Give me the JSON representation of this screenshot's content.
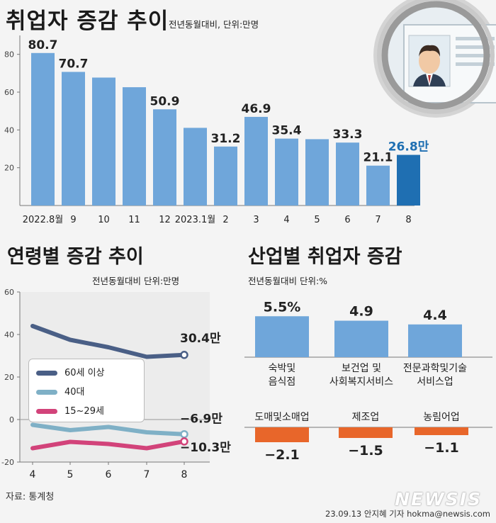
{
  "header": {
    "title": "취업자 증감 추이",
    "subtitle": "전년동월대비, 단위:만명"
  },
  "colors": {
    "bar": "#6fa6da",
    "bar_highlight": "#1f6fb2",
    "highlight_text": "#1f6fb2",
    "negative_bar": "#e8662a",
    "line_60plus": "#4a5f86",
    "line_40s": "#7fb0c6",
    "line_15_29": "#d2437a"
  },
  "age_section": {
    "title": "연령별 증감 추이",
    "subtitle": "전년동월대비 단위:만명"
  },
  "industry_section": {
    "title": "산업별 취업자 증감",
    "subtitle": "전년동월대비 단위:%"
  },
  "footer": {
    "source": "자료: 통계청",
    "credit": "23.09.13 안지혜 기자 hokma@newsis.com",
    "watermark": "NEWSIS"
  },
  "chart_data": [
    {
      "type": "bar",
      "title": "취업자 증감 추이",
      "categories": [
        "2022.8월",
        "9",
        "10",
        "11",
        "12",
        "2023.1월",
        "2",
        "3",
        "4",
        "5",
        "6",
        "7",
        "8"
      ],
      "values": [
        80.7,
        70.7,
        67.7,
        62.6,
        50.9,
        41.1,
        31.2,
        46.9,
        35.4,
        35.1,
        33.3,
        21.1,
        26.8
      ],
      "data_labels": [
        "80.7",
        "70.7",
        "",
        "",
        "50.9",
        "",
        "31.2",
        "46.9",
        "35.4",
        "",
        "33.3",
        "21.1",
        "26.8만"
      ],
      "yticks": [
        20,
        40,
        60,
        80
      ],
      "ylim": [
        0,
        90
      ],
      "highlight_index": 12
    },
    {
      "type": "line",
      "title": "연령별 증감 추이",
      "x": [
        4,
        5,
        6,
        7,
        8
      ],
      "series": [
        {
          "name": "60세 이상",
          "values": [
            44,
            37.5,
            34,
            29.5,
            30.4
          ],
          "end_label": "30.4만"
        },
        {
          "name": "40대",
          "values": [
            -2.5,
            -5,
            -3.5,
            -6,
            -6.9
          ],
          "end_label": "−6.9만"
        },
        {
          "name": "15~29세",
          "values": [
            -13.5,
            -10.5,
            -11.5,
            -13.5,
            -10.3
          ],
          "end_label": "−10.3만"
        }
      ],
      "yticks": [
        -20,
        0,
        20,
        40,
        60
      ],
      "ylim": [
        -20,
        60
      ],
      "legend": "left"
    },
    {
      "type": "bar",
      "title": "산업별 취업자 증감",
      "categories": [
        "숙박및 음식점",
        "보건업 및 사회복지서비스",
        "전문과학및기술 서비스업",
        "도매및소매업",
        "제조업",
        "농림어업"
      ],
      "values": [
        5.5,
        4.9,
        4.4,
        -2.1,
        -1.5,
        -1.1
      ],
      "value_labels": [
        "5.5%",
        "4.9",
        "4.4",
        "−2.1",
        "−1.5",
        "−1.1"
      ],
      "label_lines": [
        [
          "숙박및",
          "음식점"
        ],
        [
          "보건업 및",
          "사회복지서비스"
        ],
        [
          "전문과학및기술",
          "서비스업"
        ],
        [
          "도매및소매업"
        ],
        [
          "제조업"
        ],
        [
          "농림어업"
        ]
      ]
    }
  ]
}
